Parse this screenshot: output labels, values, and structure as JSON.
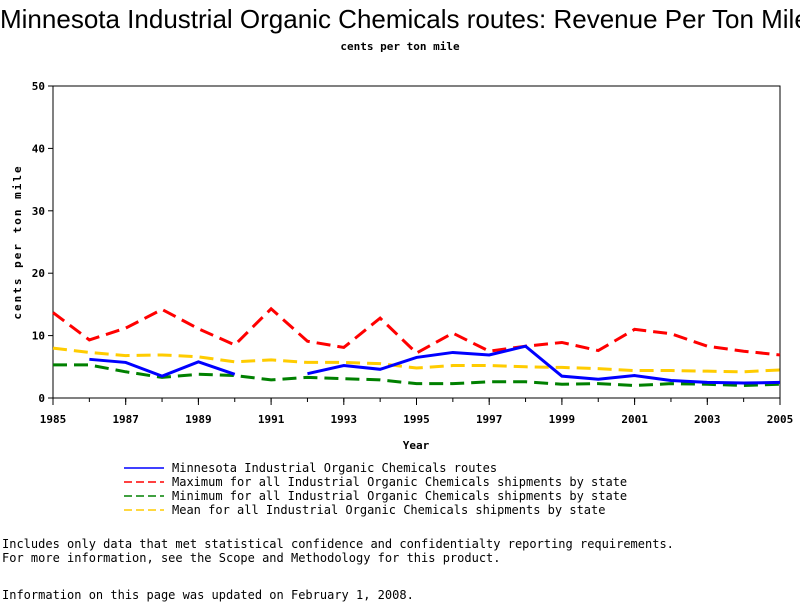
{
  "chart_data": {
    "type": "line",
    "title": "Minnesota Industrial Organic Chemicals routes: Revenue Per Ton Mile",
    "subtitle": "cents per ton mile",
    "xlabel": "Year",
    "ylabel": "cents per ton mile",
    "xlim": [
      1985,
      2005
    ],
    "ylim": [
      0,
      50
    ],
    "x_ticks": [
      "1985",
      "1987",
      "1989",
      "1991",
      "1993",
      "1995",
      "1997",
      "1999",
      "2001",
      "2003",
      "2005"
    ],
    "y_ticks": [
      "0",
      "10",
      "20",
      "30",
      "40",
      "50"
    ],
    "x": [
      1985,
      1986,
      1987,
      1988,
      1989,
      1990,
      1991,
      1992,
      1993,
      1994,
      1995,
      1996,
      1997,
      1998,
      1999,
      2000,
      2001,
      2002,
      2003,
      2004,
      2005
    ],
    "series": [
      {
        "name": "Minnesota Industrial Organic Chemicals routes",
        "color": "#0000ff",
        "dash": "solid",
        "values": [
          null,
          6.2,
          5.7,
          3.5,
          5.8,
          3.8,
          null,
          3.9,
          5.2,
          4.6,
          6.5,
          7.3,
          6.9,
          8.3,
          3.5,
          3.0,
          3.6,
          2.8,
          2.5,
          2.4,
          2.5
        ]
      },
      {
        "name": "Maximum for all Industrial Organic Chemicals shipments by state",
        "color": "#ff0000",
        "dash": "dashed",
        "values": [
          13.7,
          9.3,
          11.2,
          14.2,
          11.1,
          8.5,
          14.3,
          9.1,
          8.1,
          12.8,
          7.2,
          10.4,
          7.5,
          8.3,
          8.9,
          7.6,
          11.0,
          10.3,
          8.3,
          7.5,
          6.9
        ]
      },
      {
        "name": "Minimum for all Industrial Organic Chemicals shipments by state",
        "color": "#008000",
        "dash": "dashed",
        "values": [
          5.3,
          5.3,
          4.2,
          3.3,
          3.8,
          3.6,
          2.9,
          3.3,
          3.1,
          2.9,
          2.3,
          2.3,
          2.6,
          2.6,
          2.2,
          2.3,
          2.0,
          2.3,
          2.2,
          2.0,
          2.2
        ]
      },
      {
        "name": "Mean for all Industrial Organic Chemicals shipments by state",
        "color": "#ffcc00",
        "dash": "dashed",
        "values": [
          8.0,
          7.3,
          6.8,
          6.9,
          6.6,
          5.8,
          6.1,
          5.7,
          5.7,
          5.5,
          4.8,
          5.2,
          5.2,
          5.0,
          4.9,
          4.7,
          4.4,
          4.4,
          4.3,
          4.2,
          4.5
        ]
      }
    ],
    "legend": "bottom",
    "grid": false
  },
  "footer": {
    "note_line1": "Includes only data that met statistical confidence and confidentialty reporting requirements.",
    "note_line2": "For more information, see the Scope and Methodology for this product.",
    "updated": "Information on this page was updated on February 1, 2008."
  }
}
